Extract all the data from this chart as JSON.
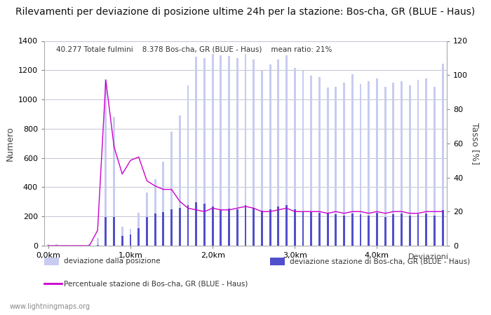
{
  "title": "Rilevamenti per deviazione di posizione ultime 24h per la stazione: Bos-cha, GR (BLUE - Haus)",
  "subtitle": "40.277 Totale fulmini    8.378 Bos-cha, GR (BLUE - Haus)    mean ratio: 21%",
  "ylabel_left": "Numero",
  "ylabel_right": "Tasso [%]",
  "xlabel_right": "Deviazioni",
  "watermark": "www.lightningmaps.org",
  "legend1": "deviazione dalla posizione",
  "legend2": "deviazione stazione di Bos-cha, GR (BLUE - Haus)",
  "legend3": "Percentuale stazione di Bos-cha, GR (BLUE - Haus)",
  "ylim_left": [
    0,
    1400
  ],
  "ylim_right": [
    0,
    120
  ],
  "yticks_left": [
    0,
    200,
    400,
    600,
    800,
    1000,
    1200,
    1400
  ],
  "yticks_right": [
    0,
    20,
    40,
    60,
    80,
    100,
    120
  ],
  "bar_color_light": "#c8ccf0",
  "bar_color_dark": "#5050cc",
  "line_color": "#cc00cc",
  "grid_color": "#bbbbcc",
  "bg_color": "#ffffff",
  "title_fontsize": 10,
  "bar_width": 0.25,
  "total_bars": [
    10,
    10,
    5,
    3,
    5,
    12,
    55,
    1140,
    880,
    130,
    115,
    225,
    365,
    455,
    575,
    780,
    890,
    1095,
    1290,
    1285,
    1310,
    1300,
    1295,
    1285,
    1310,
    1275,
    1195,
    1240,
    1275,
    1300,
    1215,
    1195,
    1165,
    1155,
    1080,
    1085,
    1115,
    1175,
    1105,
    1125,
    1145,
    1085,
    1115,
    1125,
    1095,
    1135,
    1145,
    1085,
    1245
  ],
  "station_bars": [
    0,
    0,
    0,
    0,
    0,
    0,
    5,
    195,
    195,
    68,
    78,
    118,
    198,
    218,
    228,
    248,
    258,
    278,
    298,
    288,
    268,
    248,
    253,
    248,
    278,
    258,
    238,
    248,
    268,
    278,
    248,
    233,
    228,
    223,
    218,
    213,
    208,
    218,
    213,
    208,
    223,
    198,
    213,
    218,
    208,
    213,
    218,
    208,
    243
  ],
  "ratio_line": [
    0,
    0,
    0,
    0,
    0,
    0,
    9,
    97,
    58,
    42,
    50,
    52,
    38,
    35,
    33,
    33,
    26,
    22,
    21,
    20,
    22,
    21,
    21,
    22,
    23,
    22,
    20,
    20,
    21,
    22,
    20,
    20,
    20,
    20,
    19,
    20,
    19,
    20,
    20,
    19,
    20,
    19,
    20,
    20,
    19,
    19,
    20,
    20,
    20
  ],
  "xtick_pos": [
    0,
    10,
    20,
    30,
    40
  ],
  "xtick_labels": [
    "0,0km",
    "1,0km",
    "2,0km",
    "3,0km",
    "4,0km"
  ]
}
